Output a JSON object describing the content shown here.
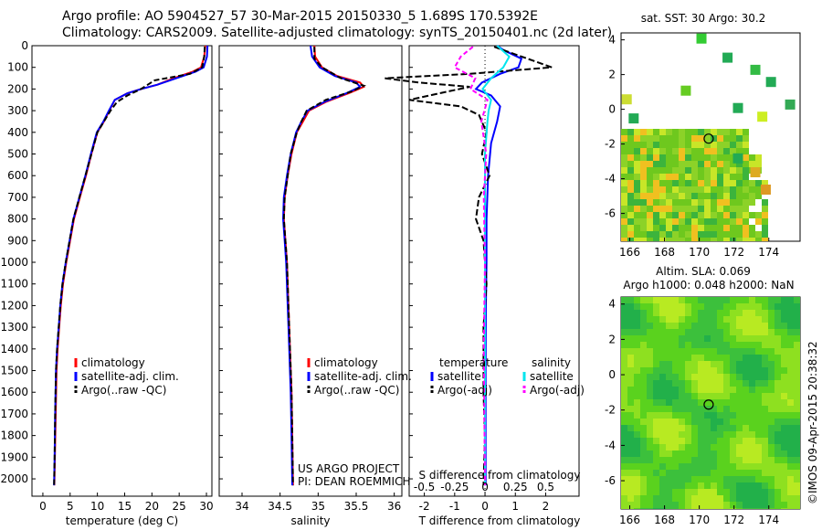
{
  "header": {
    "title": "Argo profile: AO 5904527_57 30-Mar-2015 20150330_5 1.689S 170.5392E",
    "subtitle": "Climatology: CARS2009. Satellite-adjusted climatology: synTS_20150401.nc (2d later)"
  },
  "colors": {
    "climatology": "#ff0000",
    "satellite": "#0000ff",
    "argo": "#000000",
    "salinity_satellite": "#00e5ee",
    "salinity_argo": "#ff00ff"
  },
  "credit": "US ARGO PROJECT",
  "credit2": "PI: DEAN ROEMMICH",
  "imos_stamp": "©IMOS 09-Apr-2015 20:38:32",
  "chart_data": [
    {
      "type": "line",
      "panel": "temperature",
      "xlabel": "temperature (deg C)",
      "xlim": [
        -2,
        31
      ],
      "xticks": [
        0,
        5,
        10,
        15,
        20,
        25,
        30
      ],
      "ylim": [
        2080,
        0
      ],
      "yticks": [
        0,
        100,
        200,
        300,
        400,
        500,
        600,
        700,
        800,
        900,
        1000,
        1100,
        1200,
        1300,
        1400,
        1500,
        1600,
        1700,
        1800,
        1900,
        2000
      ],
      "legend": [
        "climatology",
        "satellite-adj. clim.",
        "Argo(..raw -QC)"
      ],
      "series": [
        {
          "name": "climatology",
          "x": [
            29.8,
            29.6,
            29.0,
            27.5,
            24,
            21,
            18,
            15.5,
            13.2,
            12.2,
            11.2,
            10.0,
            8.9,
            7.9,
            6.8,
            5.7,
            5.0,
            4.3,
            3.7,
            3.3,
            3.0,
            2.7,
            2.5,
            2.35,
            2.2,
            2.1
          ],
          "y": [
            0,
            50,
            100,
            120,
            150,
            180,
            200,
            220,
            250,
            300,
            350,
            400,
            500,
            600,
            700,
            800,
            900,
            1000,
            1100,
            1200,
            1300,
            1400,
            1500,
            1700,
            1900,
            2030
          ]
        },
        {
          "name": "satellite-adj. clim.",
          "x": [
            30.2,
            30.1,
            29.5,
            28.0,
            24.5,
            21,
            18,
            15.5,
            13.2,
            12.1,
            11.1,
            9.9,
            8.8,
            7.8,
            6.7,
            5.6,
            4.9,
            4.2,
            3.6,
            3.2,
            2.9,
            2.6,
            2.4,
            2.25,
            2.15,
            2.05
          ],
          "y": [
            0,
            50,
            100,
            120,
            150,
            180,
            200,
            220,
            250,
            300,
            350,
            400,
            500,
            600,
            700,
            800,
            900,
            1000,
            1100,
            1200,
            1300,
            1400,
            1500,
            1700,
            1900,
            2030
          ]
        },
        {
          "name": "Argo(..raw -QC)",
          "x": [
            29.7,
            29.6,
            29.2,
            27,
            20.5,
            18,
            15.5,
            13.6,
            12.4,
            11.2,
            10.0,
            8.9,
            7.8,
            6.7,
            5.6,
            4.9,
            4.2,
            3.6,
            3.2,
            2.9,
            2.6,
            2.4,
            2.25,
            2.15,
            2.05
          ],
          "y": [
            5,
            50,
            100,
            130,
            160,
            200,
            230,
            260,
            300,
            350,
            400,
            500,
            600,
            700,
            800,
            900,
            1000,
            1100,
            1200,
            1300,
            1400,
            1500,
            1700,
            1900,
            2030
          ]
        }
      ]
    },
    {
      "type": "line",
      "panel": "salinity",
      "xlabel": "salinity",
      "xlim": [
        33.7,
        36.1
      ],
      "xticks": [
        34,
        34.5,
        35,
        35.5,
        36
      ],
      "xticklabels": [
        "34",
        "34.5",
        "35",
        "35.5",
        "36"
      ],
      "ylim": [
        2080,
        0
      ],
      "legend": [
        "climatology",
        "satellite-adj. clim.",
        "Argo(..raw -QC)"
      ],
      "series": [
        {
          "name": "climatology",
          "x": [
            34.95,
            34.96,
            35.05,
            35.25,
            35.55,
            35.6,
            35.4,
            35.1,
            34.88,
            34.8,
            34.72,
            34.65,
            34.6,
            34.56,
            34.55,
            34.57,
            34.59,
            34.61,
            34.63,
            34.65,
            34.66,
            34.67
          ],
          "y": [
            0,
            50,
            100,
            140,
            170,
            190,
            220,
            260,
            300,
            350,
            400,
            500,
            600,
            700,
            800,
            900,
            1000,
            1200,
            1400,
            1600,
            1800,
            2030
          ]
        },
        {
          "name": "satellite-adj. clim.",
          "x": [
            34.9,
            34.92,
            35.02,
            35.22,
            35.5,
            35.55,
            35.37,
            35.08,
            34.86,
            34.78,
            34.71,
            34.64,
            34.59,
            34.55,
            34.54,
            34.56,
            34.58,
            34.6,
            34.62,
            34.64,
            34.65,
            34.66
          ],
          "y": [
            0,
            50,
            100,
            140,
            170,
            190,
            220,
            260,
            300,
            350,
            400,
            500,
            600,
            700,
            800,
            900,
            1000,
            1200,
            1400,
            1600,
            1800,
            2030
          ]
        },
        {
          "name": "Argo(..raw -QC)",
          "x": [
            34.95,
            34.95,
            35.05,
            35.3,
            35.6,
            35.45,
            35.1,
            34.85,
            34.78,
            34.72,
            34.64,
            34.6,
            34.56,
            34.55,
            34.57,
            34.59,
            34.61,
            34.63,
            34.65,
            34.66,
            34.67
          ],
          "y": [
            5,
            60,
            100,
            150,
            185,
            210,
            250,
            300,
            350,
            400,
            500,
            600,
            700,
            800,
            900,
            1000,
            1200,
            1400,
            1600,
            1800,
            2030
          ]
        }
      ]
    },
    {
      "type": "line",
      "panel": "difference",
      "xlabel": "T difference from climatology",
      "xlabel_top": "S difference from climatology",
      "xlim": [
        -2.5,
        3.1
      ],
      "xticks": [
        -2,
        -1,
        0,
        1,
        2
      ],
      "sxlim": [
        -0.625,
        0.775
      ],
      "sxticks": [
        -0.5,
        -0.25,
        0,
        0.25,
        0.5
      ],
      "ylim": [
        2080,
        0
      ],
      "legend_t": [
        "temperature",
        "satellite",
        "Argo(-adj)"
      ],
      "legend_s": [
        "salinity",
        "satellite",
        "Argo(-adj)"
      ],
      "series": [
        {
          "name": "temperature satellite",
          "x": [
            0.4,
            0.6,
            1.2,
            1.1,
            0.5,
            -0.1,
            -0.3,
            0.2,
            0.5,
            0.4,
            0.2,
            0.1,
            0.05,
            0.05,
            0.03,
            0.02,
            0.02,
            0.02
          ],
          "y": [
            0,
            20,
            60,
            100,
            130,
            170,
            200,
            230,
            280,
            350,
            450,
            600,
            800,
            1000,
            1200,
            1500,
            1800,
            2030
          ]
        },
        {
          "name": "temperature Argo(-adj)",
          "x": [
            0.3,
            0.8,
            2.2,
            -0.5,
            -3.3,
            -2.2,
            -0.5,
            -1.5,
            -2.5,
            -0.8,
            -0.2,
            0.05,
            -0.1,
            0.15,
            -0.2,
            -0.3,
            -0.05,
            0.05,
            -0.05,
            -0.05,
            0.0,
            -0.05
          ],
          "y": [
            5,
            30,
            100,
            130,
            150,
            170,
            190,
            220,
            250,
            280,
            320,
            400,
            500,
            600,
            700,
            800,
            900,
            1100,
            1300,
            1600,
            1800,
            2030
          ]
        },
        {
          "name": "salinity satellite",
          "x": [
            0.1,
            0.2,
            0.15,
            0.05,
            -0.02,
            0.05,
            0.03,
            0.02,
            0.0,
            0.0,
            0.0,
            0.0,
            0.0
          ],
          "y": [
            0,
            50,
            100,
            150,
            200,
            250,
            300,
            350,
            500,
            800,
            1200,
            1600,
            2030
          ]
        },
        {
          "name": "salinity Argo(-adj)",
          "x": [
            -0.1,
            -0.2,
            -0.25,
            -0.08,
            -0.12,
            0.02,
            -0.03,
            0.01,
            -0.01,
            0.0,
            -0.01,
            0.0
          ],
          "y": [
            5,
            50,
            100,
            150,
            200,
            250,
            350,
            500,
            700,
            1000,
            1400,
            2030
          ]
        }
      ]
    },
    {
      "type": "heatmap",
      "panel": "sst_map",
      "title": "sat. SST: 30 Argo: 30.2",
      "xticks": [
        166,
        168,
        170,
        172,
        174
      ],
      "yticks": [
        4,
        2,
        0,
        -2,
        -4,
        -6
      ],
      "xlim": [
        165.5,
        175.8
      ],
      "ylim": [
        -7.6,
        4.4
      ],
      "marker": {
        "lon": 170.54,
        "lat": -1.69
      }
    },
    {
      "type": "heatmap",
      "panel": "sla_map",
      "title": "Altim. SLA: 0.069",
      "subtitle": "Argo h1000: 0.048 h2000: NaN",
      "xticks": [
        166,
        168,
        170,
        172,
        174
      ],
      "yticks": [
        4,
        2,
        0,
        -2,
        -4,
        -6
      ],
      "xlim": [
        165.5,
        175.8
      ],
      "ylim": [
        -7.6,
        4.4
      ],
      "marker": {
        "lon": 170.54,
        "lat": -1.69
      }
    }
  ]
}
